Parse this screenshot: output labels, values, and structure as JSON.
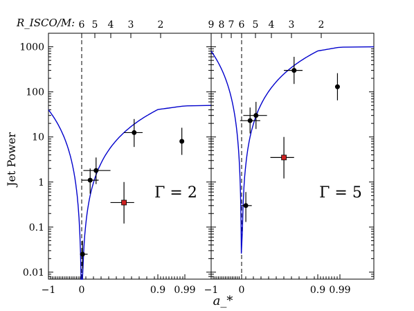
{
  "figure": {
    "top_axis_label": "R_ISCO/M:",
    "ylabel": "Jet Power",
    "xlabel": "a_*"
  },
  "chart_data": [
    {
      "type": "scatter",
      "panel_label": "Γ = 2",
      "y_scale": "log",
      "ylim": [
        0.007,
        2000
      ],
      "y_ticks": [
        0.01,
        0.1,
        1,
        10,
        100,
        1000
      ],
      "y_tick_labels": [
        "0.01",
        "0.1",
        "1",
        "10",
        "100",
        "1000"
      ],
      "x_axis": "spin a_* (nonlinear spacing)",
      "x_ticks": [
        -1,
        0,
        0.9,
        0.99
      ],
      "x_tick_labels": [
        "−1",
        "0",
        "0.9",
        "0.99"
      ],
      "top_ticks": [
        6,
        5,
        4,
        3,
        2
      ],
      "top_tick_labels": [
        "6",
        "5",
        "4",
        "3",
        "2"
      ],
      "curve_color": "#0000cc",
      "points": [
        {
          "x": 0.01,
          "y": 0.025,
          "x_lo": -0.05,
          "x_hi": 0.07,
          "y_lo": 0.012,
          "y_hi": 0.05,
          "style": "dot"
        },
        {
          "x": 0.1,
          "y": 1.1,
          "x_lo": 0.0,
          "x_hi": 0.2,
          "y_lo": 0.55,
          "y_hi": 2.0,
          "style": "dot"
        },
        {
          "x": 0.17,
          "y": 1.8,
          "x_lo": 0.02,
          "x_hi": 0.34,
          "y_lo": 0.9,
          "y_hi": 3.5,
          "style": "dot"
        },
        {
          "x": 0.5,
          "y": 0.35,
          "x_lo": 0.34,
          "x_hi": 0.62,
          "y_lo": 0.12,
          "y_hi": 1.0,
          "style": "square",
          "color": "#cc2222"
        },
        {
          "x": 0.62,
          "y": 12.5,
          "x_lo": 0.5,
          "x_hi": 0.72,
          "y_lo": 6.0,
          "y_hi": 25,
          "style": "dot"
        },
        {
          "x": 0.98,
          "y": 8.0,
          "x_lo": 0.975,
          "x_hi": 0.985,
          "y_lo": 4.0,
          "y_hi": 16,
          "style": "dot"
        }
      ]
    },
    {
      "type": "scatter",
      "panel_label": "Γ = 5",
      "y_scale": "log",
      "ylim": [
        0.007,
        2000
      ],
      "x_axis": "spin a_* (nonlinear spacing)",
      "x_ticks": [
        -1,
        0,
        0.9,
        0.99
      ],
      "x_tick_labels": [
        "−1",
        "0",
        "0.9",
        "0.99"
      ],
      "top_ticks": [
        9,
        8,
        7,
        6,
        5,
        4,
        3,
        2
      ],
      "top_tick_labels": [
        "9",
        "8",
        "7",
        "6",
        "5",
        "4",
        "3",
        "2"
      ],
      "curve_color": "#0000cc",
      "points": [
        {
          "x": 0.05,
          "y": 0.3,
          "x_lo": -0.02,
          "x_hi": 0.12,
          "y_lo": 0.13,
          "y_hi": 0.6,
          "style": "dot"
        },
        {
          "x": 0.1,
          "y": 23,
          "x_lo": -0.05,
          "x_hi": 0.22,
          "y_lo": 12,
          "y_hi": 45,
          "style": "dot"
        },
        {
          "x": 0.17,
          "y": 30,
          "x_lo": 0.02,
          "x_hi": 0.3,
          "y_lo": 15,
          "y_hi": 60,
          "style": "dot"
        },
        {
          "x": 0.5,
          "y": 3.5,
          "x_lo": 0.34,
          "x_hi": 0.62,
          "y_lo": 1.2,
          "y_hi": 10,
          "style": "square",
          "color": "#cc2222"
        },
        {
          "x": 0.62,
          "y": 300,
          "x_lo": 0.5,
          "x_hi": 0.72,
          "y_lo": 150,
          "y_hi": 600,
          "style": "dot"
        },
        {
          "x": 0.98,
          "y": 130,
          "x_lo": 0.975,
          "x_hi": 0.985,
          "y_lo": 65,
          "y_hi": 260,
          "style": "dot"
        }
      ]
    }
  ]
}
